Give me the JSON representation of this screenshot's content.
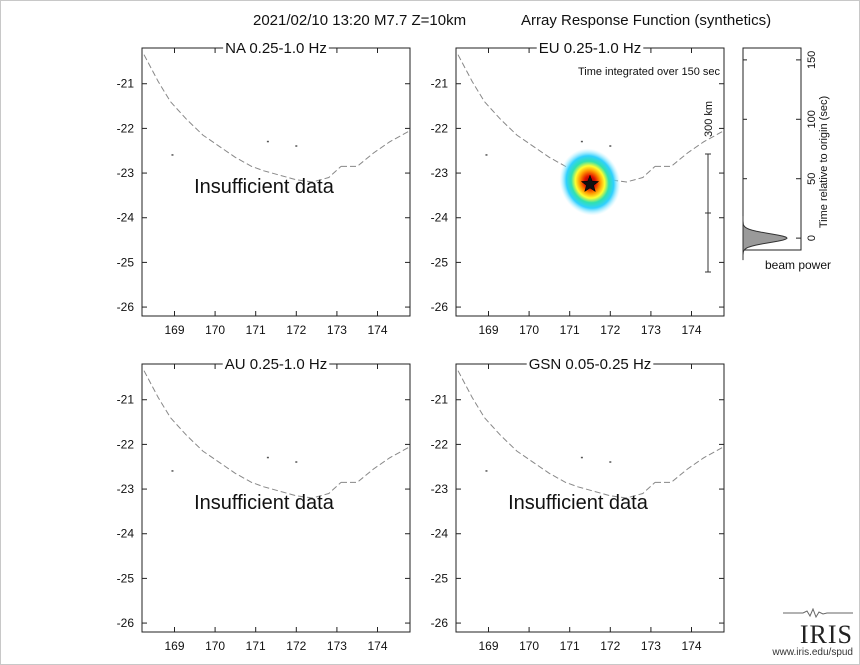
{
  "header": {
    "event": "2021/02/10 13:20  M7.7  Z=10km",
    "product": "Array Response Function (synthetics)"
  },
  "chart_data": [
    {
      "type": "heatmap",
      "title": "NA  0.25-1.0 Hz",
      "xlim": [
        168.2,
        174.8
      ],
      "ylim": [
        -26.2,
        -20.2
      ],
      "xticks": [
        169,
        170,
        171,
        172,
        173,
        174
      ],
      "yticks": [
        -21,
        -22,
        -23,
        -24,
        -25,
        -26
      ],
      "message": "Insufficient data",
      "has_beam": false
    },
    {
      "type": "heatmap",
      "title": "EU  0.25-1.0 Hz",
      "xlim": [
        168.2,
        174.8
      ],
      "ylim": [
        -26.2,
        -20.2
      ],
      "xticks": [
        169,
        170,
        171,
        172,
        173,
        174
      ],
      "yticks": [
        -21,
        -22,
        -23,
        -24,
        -25,
        -26
      ],
      "message": "",
      "has_beam": true,
      "annotation": "Time integrated over 150 sec",
      "beam_peak": {
        "lon": 171.5,
        "lat": -23.2
      },
      "epicenter": {
        "lon": 171.5,
        "lat": -23.25
      },
      "scale_label": "300 km"
    },
    {
      "type": "heatmap",
      "title": "AU  0.25-1.0 Hz",
      "xlim": [
        168.2,
        174.8
      ],
      "ylim": [
        -26.2,
        -20.2
      ],
      "xticks": [
        169,
        170,
        171,
        172,
        173,
        174
      ],
      "yticks": [
        -21,
        -22,
        -23,
        -24,
        -25,
        -26
      ],
      "message": "Insufficient data",
      "has_beam": false
    },
    {
      "type": "heatmap",
      "title": "GSN  0.05-0.25 Hz",
      "xlim": [
        168.2,
        174.8
      ],
      "ylim": [
        -26.2,
        -20.2
      ],
      "xticks": [
        169,
        170,
        171,
        172,
        173,
        174
      ],
      "yticks": [
        -21,
        -22,
        -23,
        -24,
        -25,
        -26
      ],
      "message": "Insufficient data",
      "has_beam": false
    },
    {
      "type": "area",
      "xlabel": "beam power",
      "ylabel": "Time relative to origin (sec)",
      "ylim": [
        -10,
        160
      ],
      "yticks": [
        0,
        50,
        100,
        150
      ],
      "peak_time": 0,
      "peak_power": 1.0
    }
  ],
  "coastline": [
    [
      168.25,
      -20.35
    ],
    [
      168.6,
      -20.95
    ],
    [
      168.9,
      -21.4
    ],
    [
      169.3,
      -21.8
    ],
    [
      169.7,
      -22.15
    ],
    [
      170.1,
      -22.4
    ],
    [
      170.5,
      -22.65
    ],
    [
      170.9,
      -22.85
    ],
    [
      171.2,
      -22.95
    ],
    [
      171.6,
      -23.05
    ],
    [
      172.0,
      -23.15
    ],
    [
      172.4,
      -23.2
    ],
    [
      172.8,
      -23.1
    ],
    [
      173.1,
      -22.85
    ]
  ],
  "coastline_east": [
    [
      173.1,
      -22.85
    ],
    [
      173.5,
      -22.85
    ],
    [
      173.9,
      -22.55
    ],
    [
      174.3,
      -22.3
    ],
    [
      174.8,
      -22.05
    ]
  ],
  "islands": [
    [
      168.95,
      -22.6
    ],
    [
      171.3,
      -22.3
    ],
    [
      172.0,
      -22.4
    ]
  ],
  "logo": {
    "word": "IRIS",
    "url": "www.iris.edu/spud"
  }
}
